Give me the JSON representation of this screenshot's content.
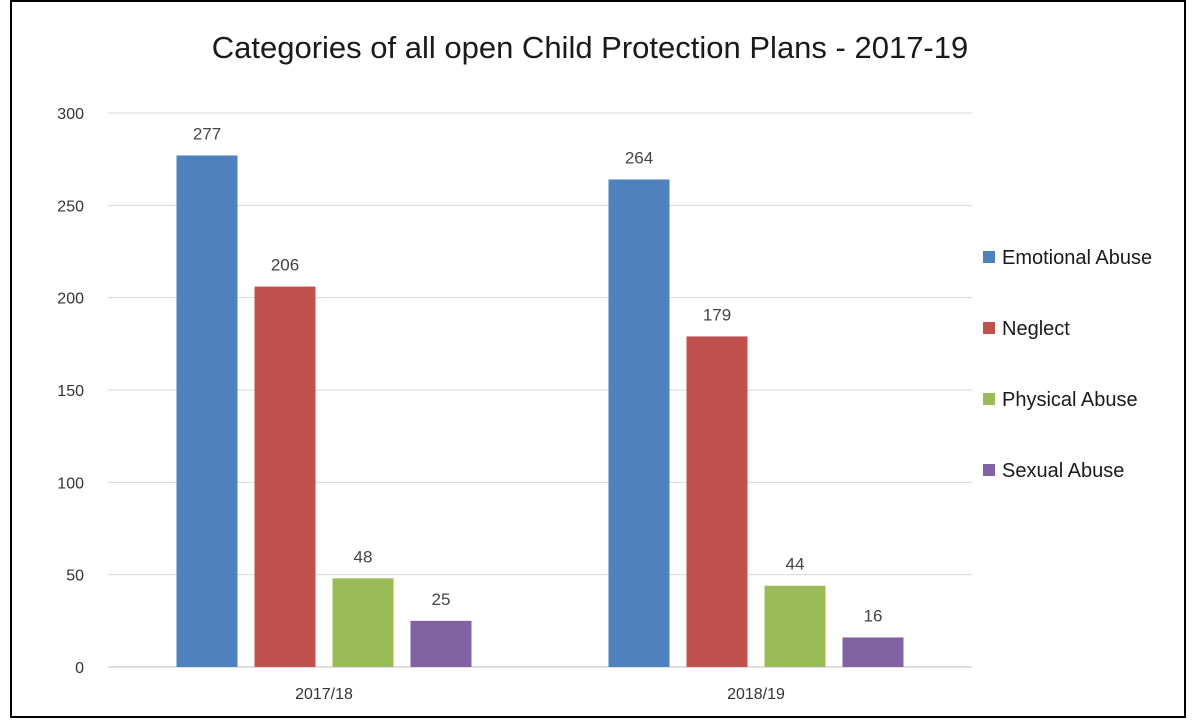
{
  "chart_data": {
    "type": "bar",
    "title": "Categories of all open Child Protection Plans - 2017-19",
    "categories": [
      "2017/18",
      "2018/19"
    ],
    "series": [
      {
        "name": "Emotional Abuse",
        "values": [
          277,
          264
        ],
        "color": "#4F81BD"
      },
      {
        "name": "Neglect",
        "values": [
          206,
          179
        ],
        "color": "#C0504D"
      },
      {
        "name": "Physical Abuse",
        "values": [
          48,
          44
        ],
        "color": "#9BBB59"
      },
      {
        "name": "Sexual Abuse",
        "values": [
          25,
          16
        ],
        "color": "#8064A2"
      }
    ],
    "yticks": [
      "0",
      "50",
      "100",
      "150",
      "200",
      "250",
      "300"
    ],
    "ylim": [
      0,
      300
    ],
    "xlabel": "",
    "ylabel": "",
    "grid": true,
    "legend": "right",
    "data_labels": true
  }
}
